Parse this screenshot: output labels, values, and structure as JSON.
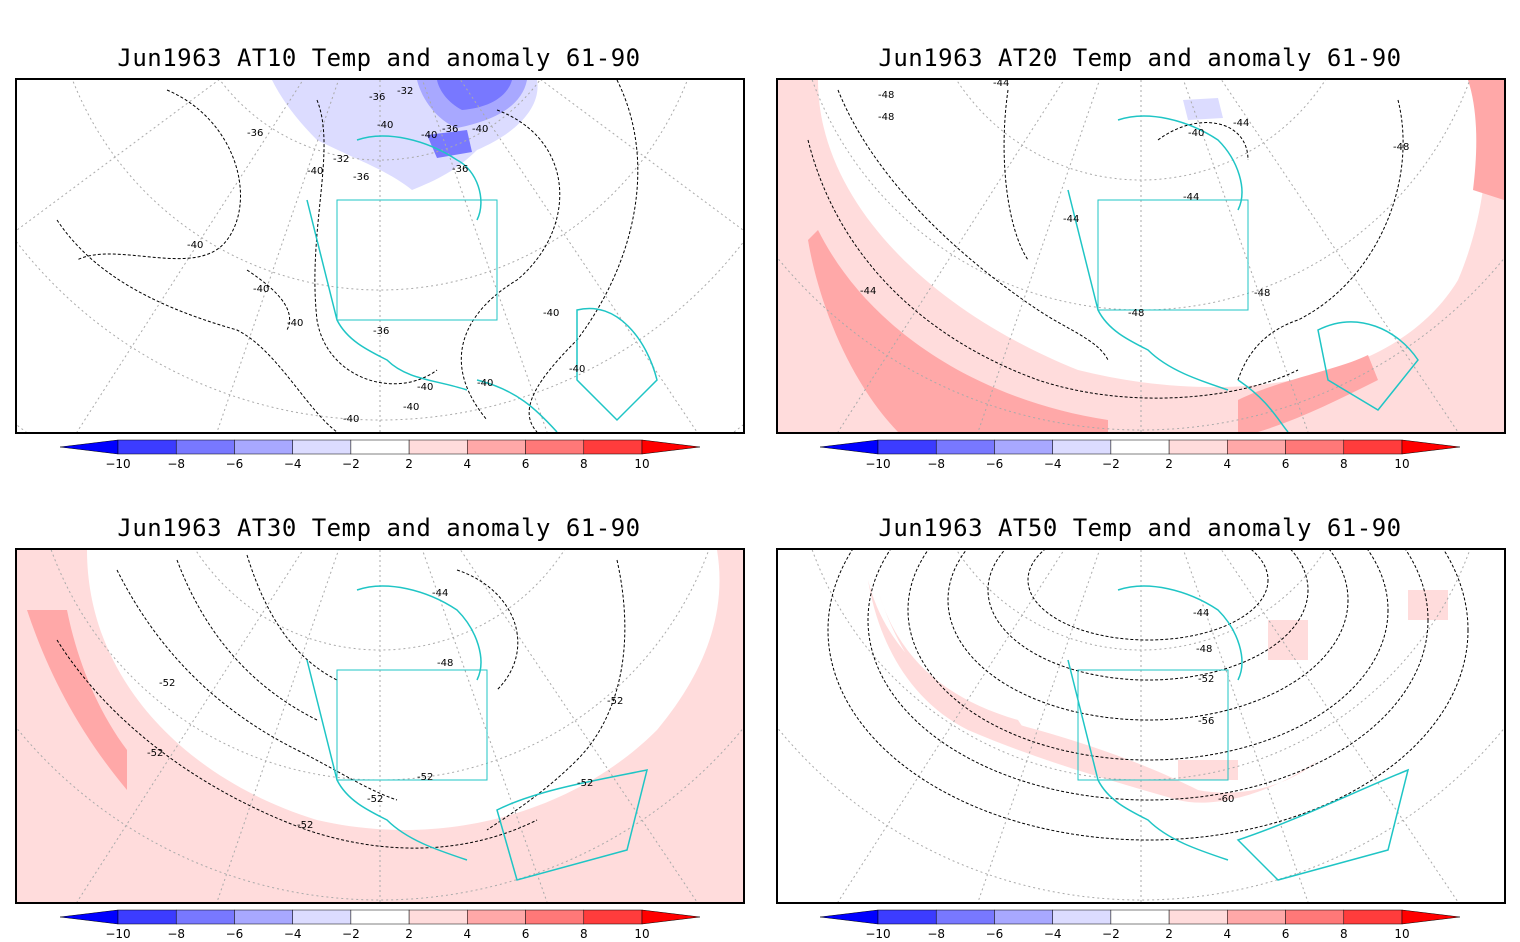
{
  "panels": [
    {
      "title": "Jun1963 AT10 Temp and anomaly 61-90",
      "contour_labels": [
        "-32",
        "-36",
        "-40",
        "-40",
        "-36",
        "-32",
        "-36",
        "-40",
        "-36",
        "-40",
        "-40",
        "-40",
        "-40",
        "-36",
        "-40",
        "-40",
        "-40",
        "-40",
        "-40",
        "-40",
        "-36"
      ]
    },
    {
      "title": "Jun1963 AT20 Temp and anomaly 61-90",
      "contour_labels": [
        "-48",
        "-44",
        "-40",
        "-44",
        "-48",
        "-44",
        "-44",
        "-44",
        "-48",
        "-48",
        "-48"
      ]
    },
    {
      "title": "Jun1963 AT30 Temp and anomaly 61-90",
      "contour_labels": [
        "-44",
        "-48",
        "-52",
        "-52",
        "-52",
        "-52",
        "-52",
        "-52",
        "-52"
      ]
    },
    {
      "title": "Jun1963 AT50 Temp and anomaly 61-90",
      "contour_labels": [
        "-44",
        "-48",
        "-52",
        "-56",
        "-60"
      ]
    }
  ],
  "colorbar": {
    "tick_labels": [
      "−10",
      "−8",
      "−6",
      "−4",
      "−2",
      "2",
      "4",
      "6",
      "8",
      "10"
    ],
    "colors": [
      "#0000ff",
      "#3c3cff",
      "#7878ff",
      "#a8a8ff",
      "#dcdcff",
      "#ffffff",
      "#ffdcdc",
      "#ffa8a8",
      "#ff7878",
      "#ff3c3c",
      "#ff0000"
    ]
  },
  "map_colors": {
    "coast": "#1fc5c5",
    "grid": "#aaaaaa",
    "contour": "#000000"
  }
}
